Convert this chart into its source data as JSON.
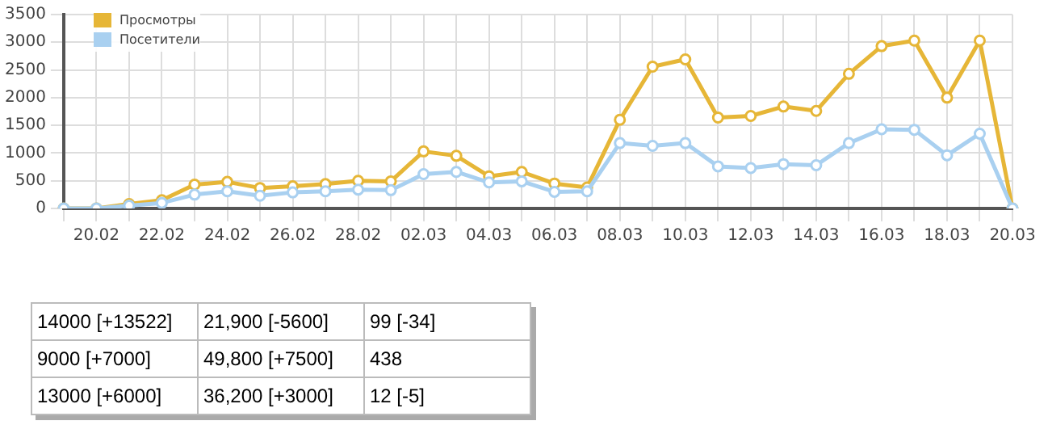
{
  "chart_data": {
    "type": "line",
    "categories": [
      null,
      "20.02",
      null,
      "22.02",
      null,
      "24.02",
      null,
      "26.02",
      null,
      "28.02",
      null,
      "02.03",
      null,
      "04.03",
      null,
      "06.03",
      null,
      "08.03",
      null,
      "10.03",
      null,
      "12.03",
      null,
      "14.03",
      null,
      "16.03",
      null,
      "18.03",
      null,
      "20.03"
    ],
    "series": [
      {
        "name": "Просмотры",
        "color": "#e6b637",
        "values": [
          0,
          0,
          80,
          150,
          430,
          480,
          370,
          400,
          440,
          500,
          490,
          1030,
          950,
          580,
          660,
          450,
          380,
          1600,
          2560,
          2690,
          1640,
          1670,
          1840,
          1760,
          2430,
          2930,
          3030,
          2000,
          3030,
          0
        ]
      },
      {
        "name": "Посетители",
        "color": "#a9d0f0",
        "values": [
          0,
          0,
          50,
          100,
          250,
          310,
          230,
          290,
          310,
          340,
          330,
          620,
          660,
          470,
          490,
          300,
          310,
          1180,
          1130,
          1180,
          760,
          730,
          800,
          780,
          1180,
          1430,
          1420,
          960,
          1350,
          0
        ]
      }
    ],
    "ylim": [
      0,
      3500
    ],
    "yticks": [
      0,
      500,
      1000,
      1500,
      2000,
      2500,
      3000,
      3500
    ],
    "grid": true,
    "legend": "top left",
    "marker": "circle",
    "line_style": "solid",
    "annotations": [
      "14000 [+13522]",
      "21,900 [-5600]",
      "99 [-34]",
      "9000 [+7000]",
      "49,800 [+7500]",
      "438",
      "13000 [+6000]",
      "36,200 [+3000]",
      "12 [-5]"
    ]
  }
}
